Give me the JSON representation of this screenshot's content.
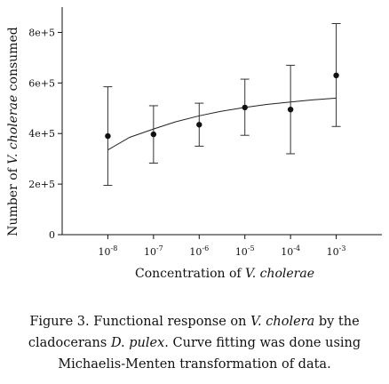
{
  "chart_data": {
    "type": "scatter",
    "x_scale": "log",
    "x_ticks": [
      {
        "value": 1e-08,
        "base": "10",
        "exp": "-8"
      },
      {
        "value": 1e-07,
        "base": "10",
        "exp": "-7"
      },
      {
        "value": 1e-06,
        "base": "10",
        "exp": "-6"
      },
      {
        "value": 1e-05,
        "base": "10",
        "exp": "-5"
      },
      {
        "value": 0.0001,
        "base": "10",
        "exp": "-4"
      },
      {
        "value": 0.001,
        "base": "10",
        "exp": "-3"
      }
    ],
    "xlim": [
      1e-09,
      0.01
    ],
    "y_ticks": [
      {
        "value": 0,
        "label": "0"
      },
      {
        "value": 200000,
        "label": "2e+5"
      },
      {
        "value": 400000,
        "label": "4e+5"
      },
      {
        "value": 600000,
        "label": "6e+5"
      },
      {
        "value": 800000,
        "label": "8e+5"
      }
    ],
    "ylim": [
      0,
      900000
    ],
    "xlabel_parts": [
      "Concentration of ",
      "V. cholerae"
    ],
    "ylabel_parts": [
      "Number of ",
      "V. cholerae",
      " consumed"
    ],
    "points": [
      {
        "x": 1e-08,
        "y": 390000,
        "err_low": 195000,
        "err_high": 585000
      },
      {
        "x": 1e-07,
        "y": 397000,
        "err_low": 283000,
        "err_high": 510000
      },
      {
        "x": 1e-06,
        "y": 435000,
        "err_low": 350000,
        "err_high": 520000
      },
      {
        "x": 1e-05,
        "y": 503000,
        "err_low": 393000,
        "err_high": 615000
      },
      {
        "x": 0.0001,
        "y": 495000,
        "err_low": 320000,
        "err_high": 670000
      },
      {
        "x": 0.001,
        "y": 630000,
        "err_low": 428000,
        "err_high": 835000
      }
    ],
    "fit_curve": {
      "name": "Michaelis-Menten fit",
      "x": [
        1e-08,
        3e-08,
        1e-07,
        3e-07,
        1e-06,
        3e-06,
        1e-05,
        3e-05,
        0.0001,
        0.0003,
        0.001
      ],
      "y": [
        335000,
        385000,
        418000,
        446000,
        470000,
        488000,
        503000,
        515000,
        525000,
        533000,
        540000
      ]
    },
    "grid": false
  },
  "caption": {
    "parts": [
      {
        "text": "Figure 3. Functional response on ",
        "italic": false
      },
      {
        "text": "V. cholera",
        "italic": true
      },
      {
        "text": " by the cladocerans ",
        "italic": false
      },
      {
        "text": "D. pulex",
        "italic": true
      },
      {
        "text": ". Curve fitting was done using Michaelis-Menten transformation of data.",
        "italic": false
      }
    ]
  }
}
